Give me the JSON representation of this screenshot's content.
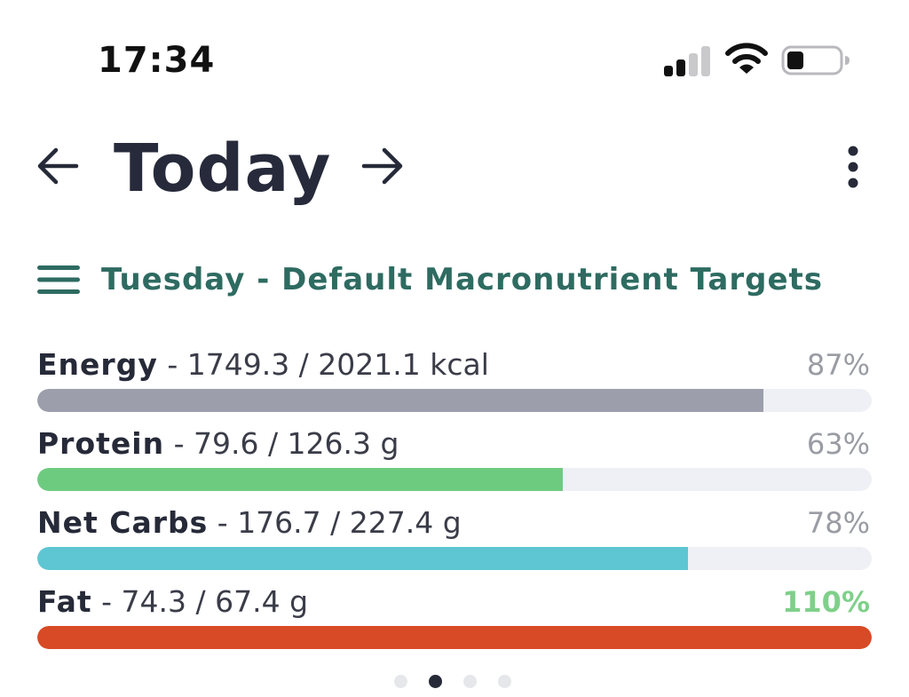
{
  "status_bar": {
    "time": "17:34",
    "signal_icon": "cellular-signal-icon",
    "wifi_icon": "wifi-icon",
    "battery_icon": "battery-low-icon"
  },
  "header": {
    "title": "Today",
    "back_icon": "arrow-left-icon",
    "forward_icon": "arrow-right-icon",
    "more_icon": "vertical-ellipsis-icon"
  },
  "targets": {
    "menu_icon": "hamburger-menu-icon",
    "label": "Tuesday - Default Macronutrient Targets"
  },
  "macros": [
    {
      "name": "Energy",
      "amount": "1749.3 / 2021.1 kcal",
      "percent": "87%",
      "fraction": 0.87,
      "color": "#9c9fab"
    },
    {
      "name": "Protein",
      "amount": "79.6 / 126.3 g",
      "percent": "63%",
      "fraction": 0.63,
      "color": "#6dcb80"
    },
    {
      "name": "Net Carbs",
      "amount": "176.7 / 227.4 g",
      "percent": "78%",
      "fraction": 0.78,
      "color": "#5ec6d3"
    },
    {
      "name": "Fat",
      "amount": "74.3 / 67.4 g",
      "percent": "110%",
      "fraction": 1.1,
      "color": "#d84a26"
    }
  ],
  "pager": {
    "count": 4,
    "active_index": 1
  },
  "colors": {
    "accent": "#2e6b61",
    "over_target": "#7fd08a",
    "track": "#eef0f5"
  }
}
